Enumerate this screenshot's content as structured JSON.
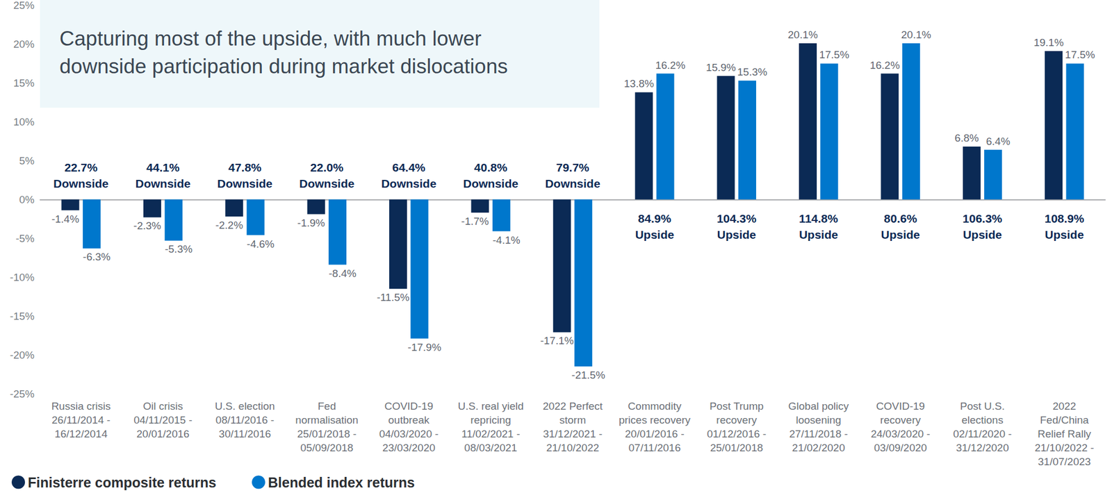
{
  "chart_data": {
    "type": "bar",
    "title": "Capturing most of the upside, with much lower\ndownside participation during market dislocations",
    "categories": [
      "Russia crisis\n26/11/2014 -\n16/12/2014",
      "Oil crisis\n04/11/2015 -\n20/01/2016",
      "U.S. election\n08/11/2016 -\n30/11/2016",
      "Fed\nnormalisation\n25/01/2018 -\n05/09/2018",
      "COVID-19\noutbreak\n04/03/2020 -\n23/03/2020",
      "U.S. real yield\nrepricing\n11/02/2021 -\n08/03/2021",
      "2022 Perfect\nstorm\n31/12/2021 -\n21/10/2022",
      "Commodity\nprices recovery\n20/01/2016 -\n07/11/2016",
      "Post Trump\nrecovery\n01/12/2016 -\n25/01/2018",
      "Global policy\nloosening\n27/11/2018 -\n21/02/2020",
      "COVID-19\nrecovery\n24/03/2020 -\n03/09/2020",
      "Post U.S.\nelections\n02/11/2020 -\n31/12/2020",
      "2022\nFed/China\nRelief Rally\n21/10/2022 -\n31/07/2023"
    ],
    "series": [
      {
        "name": "Finisterre composite returns",
        "color": "#0b2a55",
        "values": [
          -1.4,
          -2.3,
          -2.2,
          -1.9,
          -11.5,
          -1.7,
          -17.1,
          13.8,
          15.9,
          20.1,
          16.2,
          6.8,
          19.1
        ],
        "value_labels": [
          "-1.4%",
          "-2.3%",
          "-2.2%",
          "-1.9%",
          "-11.5%",
          "-1.7%",
          "-17.1%",
          "13.8%",
          "15.9%",
          "20.1%",
          "16.2%",
          "6.8%",
          "19.1%"
        ]
      },
      {
        "name": "Blended index returns",
        "color": "#0077cc",
        "values": [
          -6.3,
          -5.3,
          -4.6,
          -8.4,
          -17.9,
          -4.1,
          -21.5,
          16.2,
          15.3,
          17.5,
          20.1,
          6.4,
          17.5
        ],
        "value_labels": [
          "-6.3%",
          "-5.3%",
          "-4.6%",
          "-8.4%",
          "-17.9%",
          "-4.1%",
          "-21.5%",
          "16.2%",
          "15.3%",
          "17.5%",
          "20.1%",
          "6.4%",
          "17.5%"
        ]
      }
    ],
    "annotations": [
      "22.7%\nDownside",
      "44.1%\nDownside",
      "47.8%\nDownside",
      "22.0%\nDownside",
      "64.4%\nDownside",
      "40.8%\nDownside",
      "79.7%\nDownside",
      "84.9%\nUpside",
      "104.3%\nUpside",
      "114.8%\nUpside",
      "80.6%\nUpside",
      "106.3%\nUpside",
      "108.9%\nUpside"
    ],
    "ylim": [
      -25,
      25
    ],
    "yticks": [
      {
        "value": -25,
        "label": "-25%"
      },
      {
        "value": -20,
        "label": "-20%"
      },
      {
        "value": -15,
        "label": "-15%"
      },
      {
        "value": -10,
        "label": "-10%"
      },
      {
        "value": -5,
        "label": "-5%"
      },
      {
        "value": 0,
        "label": "0%"
      },
      {
        "value": 5,
        "label": "5%"
      },
      {
        "value": 10,
        "label": "10%"
      },
      {
        "value": 15,
        "label": "15%"
      },
      {
        "value": 20,
        "label": "20%"
      },
      {
        "value": 25,
        "label": "25%"
      }
    ],
    "grid": false,
    "legend": "lower left",
    "data_labels": true
  }
}
